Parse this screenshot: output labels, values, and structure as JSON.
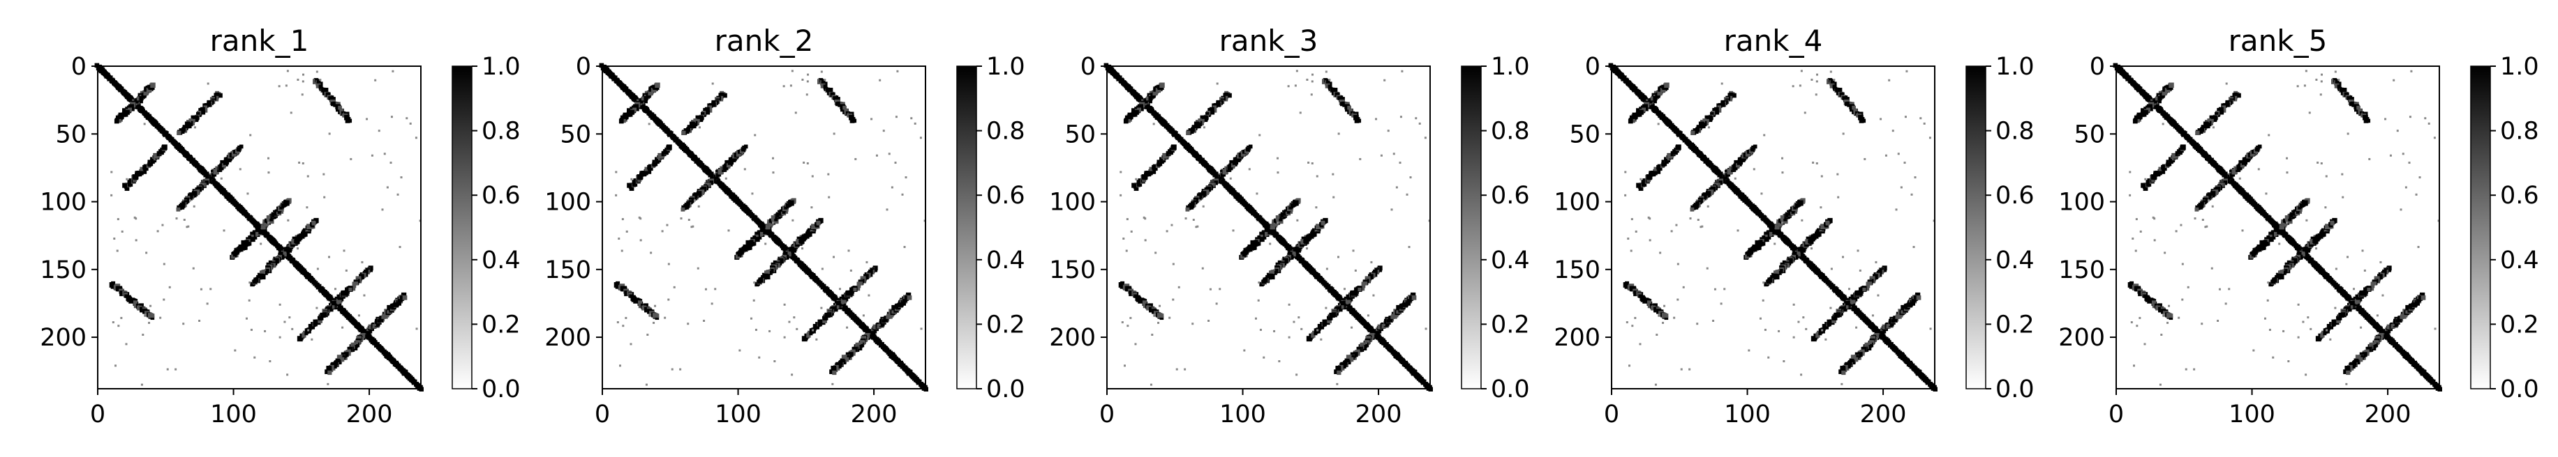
{
  "chart_data": [
    {
      "type": "heatmap",
      "title": "rank_1",
      "xlim": [
        0,
        238
      ],
      "ylim": [
        238,
        0
      ],
      "x_ticks": [
        0,
        100,
        200
      ],
      "y_ticks": [
        0,
        50,
        100,
        150,
        200
      ],
      "colorbar": {
        "range": [
          0,
          1
        ],
        "ticks": [
          "0.0",
          "0.2",
          "0.4",
          "0.6",
          "0.8",
          "1.0"
        ],
        "cmap": "gray_r"
      },
      "contacts": [
        {
          "from": [
            0,
            0
          ],
          "to": [
            238,
            238
          ],
          "kind": "diagonal"
        },
        {
          "from": [
            15,
            40
          ],
          "to": [
            40,
            15
          ],
          "kind": "antiparallel"
        },
        {
          "from": [
            60,
            105
          ],
          "to": [
            105,
            60
          ],
          "kind": "antiparallel"
        },
        {
          "from": [
            115,
            160
          ],
          "to": [
            160,
            115
          ],
          "kind": "antiparallel"
        },
        {
          "from": [
            170,
            225
          ],
          "to": [
            225,
            170
          ],
          "kind": "antiparallel"
        },
        {
          "from": [
            100,
            140
          ],
          "to": [
            140,
            100
          ],
          "kind": "antiparallel"
        },
        {
          "from": [
            20,
            90
          ],
          "to": [
            50,
            60
          ],
          "kind": "antiparallel"
        },
        {
          "from": [
            150,
            200
          ],
          "to": [
            185,
            165
          ],
          "kind": "antiparallel"
        },
        {
          "from": [
            160,
            10
          ],
          "to": [
            185,
            40
          ],
          "kind": "parallel"
        }
      ]
    },
    {
      "type": "heatmap",
      "title": "rank_2",
      "xlim": [
        0,
        238
      ],
      "ylim": [
        238,
        0
      ],
      "x_ticks": [
        0,
        100,
        200
      ],
      "y_ticks": [
        0,
        50,
        100,
        150,
        200
      ],
      "colorbar": {
        "range": [
          0,
          1
        ],
        "ticks": [
          "0.0",
          "0.2",
          "0.4",
          "0.6",
          "0.8",
          "1.0"
        ],
        "cmap": "gray_r"
      },
      "contacts": [
        {
          "from": [
            0,
            0
          ],
          "to": [
            238,
            238
          ],
          "kind": "diagonal"
        },
        {
          "from": [
            15,
            40
          ],
          "to": [
            40,
            15
          ],
          "kind": "antiparallel"
        },
        {
          "from": [
            60,
            105
          ],
          "to": [
            105,
            60
          ],
          "kind": "antiparallel"
        },
        {
          "from": [
            115,
            160
          ],
          "to": [
            160,
            115
          ],
          "kind": "antiparallel"
        },
        {
          "from": [
            170,
            225
          ],
          "to": [
            225,
            170
          ],
          "kind": "antiparallel"
        },
        {
          "from": [
            100,
            140
          ],
          "to": [
            140,
            100
          ],
          "kind": "antiparallel"
        },
        {
          "from": [
            20,
            90
          ],
          "to": [
            50,
            60
          ],
          "kind": "antiparallel"
        },
        {
          "from": [
            150,
            200
          ],
          "to": [
            185,
            165
          ],
          "kind": "antiparallel"
        },
        {
          "from": [
            160,
            10
          ],
          "to": [
            185,
            40
          ],
          "kind": "parallel"
        }
      ]
    },
    {
      "type": "heatmap",
      "title": "rank_3",
      "xlim": [
        0,
        238
      ],
      "ylim": [
        238,
        0
      ],
      "x_ticks": [
        0,
        100,
        200
      ],
      "y_ticks": [
        0,
        50,
        100,
        150,
        200
      ],
      "colorbar": {
        "range": [
          0,
          1
        ],
        "ticks": [
          "0.0",
          "0.2",
          "0.4",
          "0.6",
          "0.8",
          "1.0"
        ],
        "cmap": "gray_r"
      },
      "contacts": [
        {
          "from": [
            0,
            0
          ],
          "to": [
            238,
            238
          ],
          "kind": "diagonal"
        },
        {
          "from": [
            15,
            40
          ],
          "to": [
            40,
            15
          ],
          "kind": "antiparallel"
        },
        {
          "from": [
            60,
            105
          ],
          "to": [
            105,
            60
          ],
          "kind": "antiparallel"
        },
        {
          "from": [
            115,
            160
          ],
          "to": [
            160,
            115
          ],
          "kind": "antiparallel"
        },
        {
          "from": [
            170,
            225
          ],
          "to": [
            225,
            170
          ],
          "kind": "antiparallel"
        },
        {
          "from": [
            100,
            140
          ],
          "to": [
            140,
            100
          ],
          "kind": "antiparallel"
        },
        {
          "from": [
            20,
            90
          ],
          "to": [
            50,
            60
          ],
          "kind": "antiparallel"
        },
        {
          "from": [
            150,
            200
          ],
          "to": [
            185,
            165
          ],
          "kind": "antiparallel"
        },
        {
          "from": [
            160,
            10
          ],
          "to": [
            185,
            40
          ],
          "kind": "parallel"
        }
      ]
    },
    {
      "type": "heatmap",
      "title": "rank_4",
      "xlim": [
        0,
        238
      ],
      "ylim": [
        238,
        0
      ],
      "x_ticks": [
        0,
        100,
        200
      ],
      "y_ticks": [
        0,
        50,
        100,
        150,
        200
      ],
      "colorbar": {
        "range": [
          0,
          1
        ],
        "ticks": [
          "0.0",
          "0.2",
          "0.4",
          "0.6",
          "0.8",
          "1.0"
        ],
        "cmap": "gray_r"
      },
      "contacts": [
        {
          "from": [
            0,
            0
          ],
          "to": [
            238,
            238
          ],
          "kind": "diagonal"
        },
        {
          "from": [
            15,
            40
          ],
          "to": [
            40,
            15
          ],
          "kind": "antiparallel"
        },
        {
          "from": [
            60,
            105
          ],
          "to": [
            105,
            60
          ],
          "kind": "antiparallel"
        },
        {
          "from": [
            115,
            160
          ],
          "to": [
            160,
            115
          ],
          "kind": "antiparallel"
        },
        {
          "from": [
            170,
            225
          ],
          "to": [
            225,
            170
          ],
          "kind": "antiparallel"
        },
        {
          "from": [
            100,
            140
          ],
          "to": [
            140,
            100
          ],
          "kind": "antiparallel"
        },
        {
          "from": [
            20,
            90
          ],
          "to": [
            50,
            60
          ],
          "kind": "antiparallel"
        },
        {
          "from": [
            150,
            200
          ],
          "to": [
            185,
            165
          ],
          "kind": "antiparallel"
        },
        {
          "from": [
            160,
            10
          ],
          "to": [
            185,
            40
          ],
          "kind": "parallel"
        }
      ]
    },
    {
      "type": "heatmap",
      "title": "rank_5",
      "xlim": [
        0,
        238
      ],
      "ylim": [
        238,
        0
      ],
      "x_ticks": [
        0,
        100,
        200
      ],
      "y_ticks": [
        0,
        50,
        100,
        150,
        200
      ],
      "colorbar": {
        "range": [
          0,
          1
        ],
        "ticks": [
          "0.0",
          "0.2",
          "0.4",
          "0.6",
          "0.8",
          "1.0"
        ],
        "cmap": "gray_r"
      },
      "contacts": [
        {
          "from": [
            0,
            0
          ],
          "to": [
            238,
            238
          ],
          "kind": "diagonal"
        },
        {
          "from": [
            15,
            40
          ],
          "to": [
            40,
            15
          ],
          "kind": "antiparallel"
        },
        {
          "from": [
            60,
            105
          ],
          "to": [
            105,
            60
          ],
          "kind": "antiparallel"
        },
        {
          "from": [
            115,
            160
          ],
          "to": [
            160,
            115
          ],
          "kind": "antiparallel"
        },
        {
          "from": [
            170,
            225
          ],
          "to": [
            225,
            170
          ],
          "kind": "antiparallel"
        },
        {
          "from": [
            100,
            140
          ],
          "to": [
            140,
            100
          ],
          "kind": "antiparallel"
        },
        {
          "from": [
            20,
            90
          ],
          "to": [
            50,
            60
          ],
          "kind": "antiparallel"
        },
        {
          "from": [
            150,
            200
          ],
          "to": [
            185,
            165
          ],
          "kind": "antiparallel"
        },
        {
          "from": [
            160,
            10
          ],
          "to": [
            185,
            40
          ],
          "kind": "parallel"
        }
      ]
    }
  ]
}
